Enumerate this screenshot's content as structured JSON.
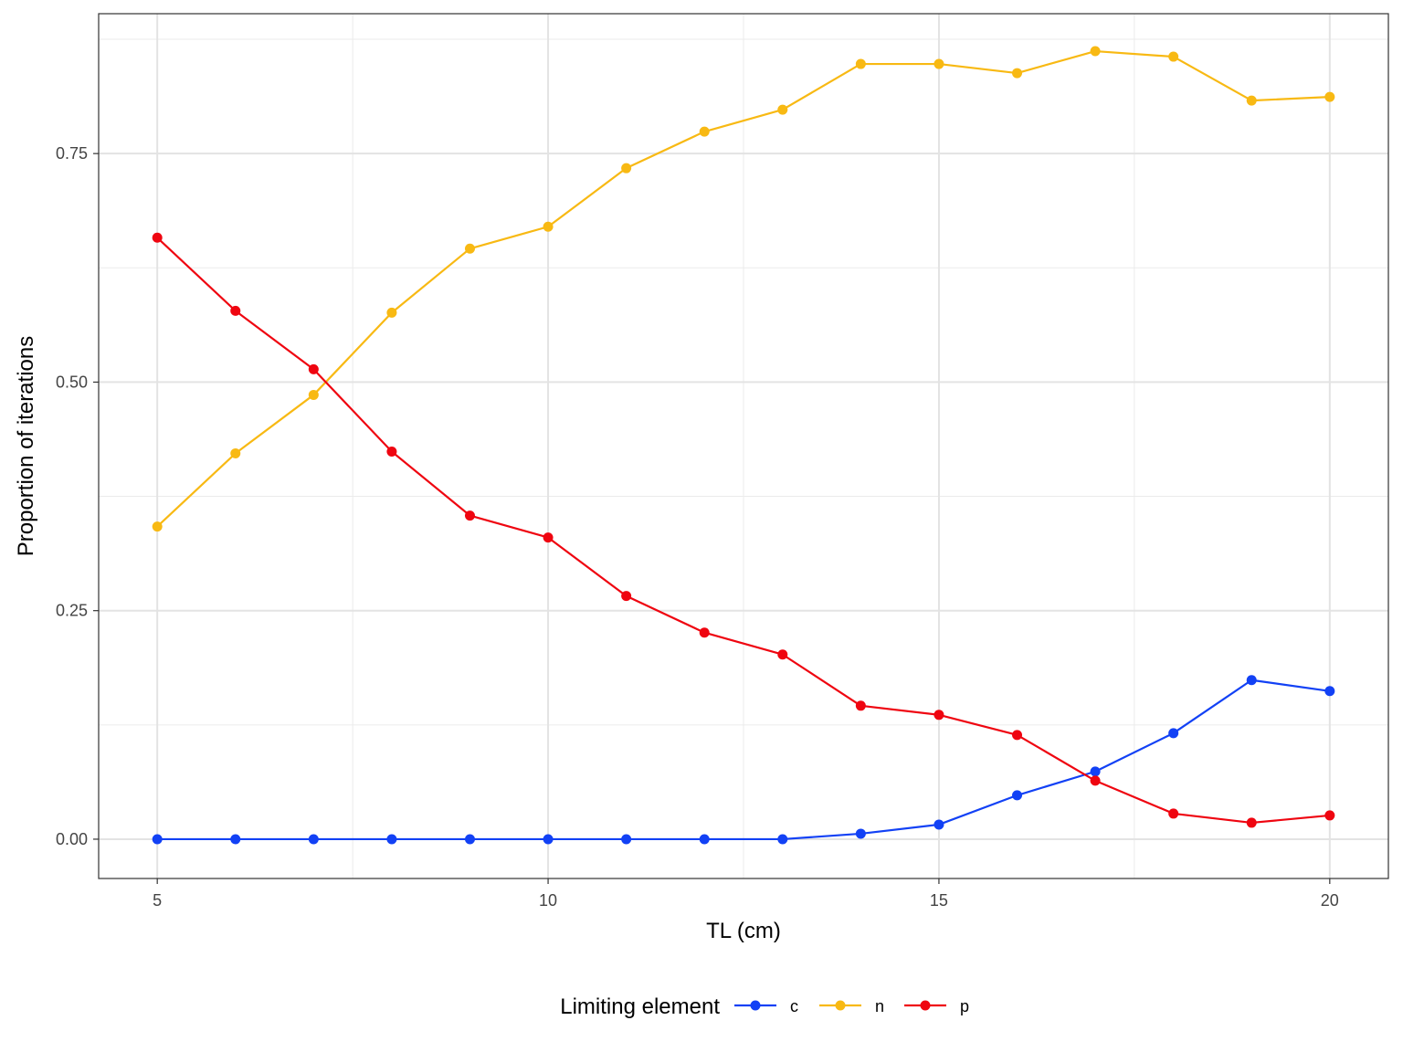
{
  "chart_data": {
    "type": "line",
    "title": "",
    "xlabel": "TL (cm)",
    "ylabel": "Proportion of iterations",
    "xlim": [
      4.25,
      20.75
    ],
    "ylim": [
      -0.043,
      0.903
    ],
    "x_ticks": [
      5,
      10,
      15,
      20
    ],
    "x_tick_labels": [
      "5",
      "10",
      "15",
      "20"
    ],
    "y_ticks": [
      0.0,
      0.25,
      0.5,
      0.75
    ],
    "y_tick_labels": [
      "0.00",
      "0.25",
      "0.50",
      "0.75"
    ],
    "grid": true,
    "legend": {
      "title": "Limiting element",
      "position": "bottom"
    },
    "x": [
      5,
      6,
      7,
      8,
      9,
      10,
      11,
      12,
      13,
      14,
      15,
      16,
      17,
      18,
      19,
      20
    ],
    "series": [
      {
        "name": "c",
        "color": "#1241f5",
        "values": [
          0,
          0,
          0,
          0,
          0,
          0,
          0,
          0,
          0,
          0.006,
          0.016,
          0.048,
          0.074,
          0.116,
          0.174,
          0.162
        ]
      },
      {
        "name": "n",
        "color": "#f8b913",
        "values": [
          0.342,
          0.422,
          0.486,
          0.576,
          0.646,
          0.67,
          0.734,
          0.774,
          0.798,
          0.848,
          0.848,
          0.838,
          0.862,
          0.856,
          0.808,
          0.812
        ]
      },
      {
        "name": "p",
        "color": "#ef0510",
        "values": [
          0.658,
          0.578,
          0.514,
          0.424,
          0.354,
          0.33,
          0.266,
          0.226,
          0.202,
          0.146,
          0.136,
          0.114,
          0.064,
          0.028,
          0.018,
          0.026
        ]
      }
    ]
  }
}
